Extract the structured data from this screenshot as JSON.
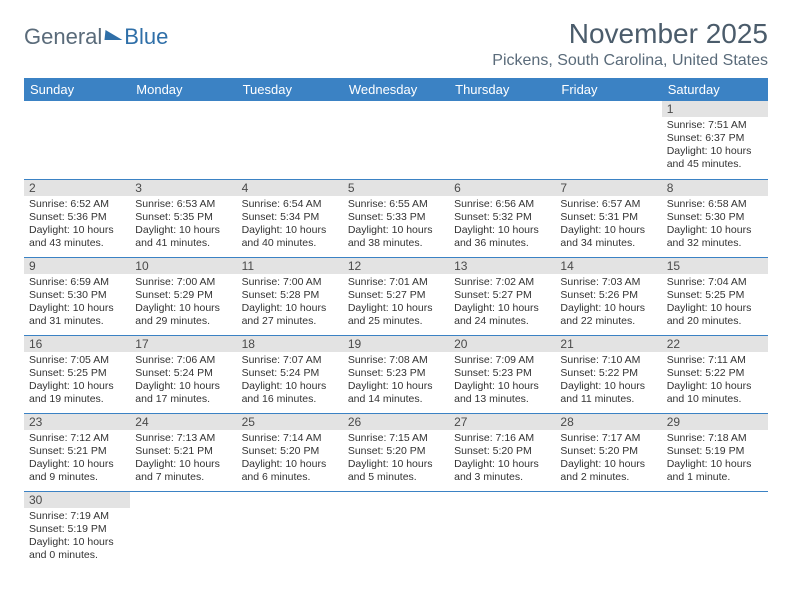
{
  "brand": {
    "part1": "General",
    "part2": "Blue"
  },
  "title": "November 2025",
  "location": "Pickens, South Carolina, United States",
  "colors": {
    "header_bg": "#3b82c4",
    "header_text": "#ffffff",
    "daynum_bg": "#e3e3e3",
    "rule": "#3b82c4",
    "title_text": "#4b5c6b",
    "subtitle_text": "#5a6b7a"
  },
  "weekdays": [
    "Sunday",
    "Monday",
    "Tuesday",
    "Wednesday",
    "Thursday",
    "Friday",
    "Saturday"
  ],
  "weeks": [
    [
      null,
      null,
      null,
      null,
      null,
      null,
      {
        "n": "1",
        "sr": "Sunrise: 7:51 AM",
        "ss": "Sunset: 6:37 PM",
        "dl": "Daylight: 10 hours and 45 minutes."
      }
    ],
    [
      {
        "n": "2",
        "sr": "Sunrise: 6:52 AM",
        "ss": "Sunset: 5:36 PM",
        "dl": "Daylight: 10 hours and 43 minutes."
      },
      {
        "n": "3",
        "sr": "Sunrise: 6:53 AM",
        "ss": "Sunset: 5:35 PM",
        "dl": "Daylight: 10 hours and 41 minutes."
      },
      {
        "n": "4",
        "sr": "Sunrise: 6:54 AM",
        "ss": "Sunset: 5:34 PM",
        "dl": "Daylight: 10 hours and 40 minutes."
      },
      {
        "n": "5",
        "sr": "Sunrise: 6:55 AM",
        "ss": "Sunset: 5:33 PM",
        "dl": "Daylight: 10 hours and 38 minutes."
      },
      {
        "n": "6",
        "sr": "Sunrise: 6:56 AM",
        "ss": "Sunset: 5:32 PM",
        "dl": "Daylight: 10 hours and 36 minutes."
      },
      {
        "n": "7",
        "sr": "Sunrise: 6:57 AM",
        "ss": "Sunset: 5:31 PM",
        "dl": "Daylight: 10 hours and 34 minutes."
      },
      {
        "n": "8",
        "sr": "Sunrise: 6:58 AM",
        "ss": "Sunset: 5:30 PM",
        "dl": "Daylight: 10 hours and 32 minutes."
      }
    ],
    [
      {
        "n": "9",
        "sr": "Sunrise: 6:59 AM",
        "ss": "Sunset: 5:30 PM",
        "dl": "Daylight: 10 hours and 31 minutes."
      },
      {
        "n": "10",
        "sr": "Sunrise: 7:00 AM",
        "ss": "Sunset: 5:29 PM",
        "dl": "Daylight: 10 hours and 29 minutes."
      },
      {
        "n": "11",
        "sr": "Sunrise: 7:00 AM",
        "ss": "Sunset: 5:28 PM",
        "dl": "Daylight: 10 hours and 27 minutes."
      },
      {
        "n": "12",
        "sr": "Sunrise: 7:01 AM",
        "ss": "Sunset: 5:27 PM",
        "dl": "Daylight: 10 hours and 25 minutes."
      },
      {
        "n": "13",
        "sr": "Sunrise: 7:02 AM",
        "ss": "Sunset: 5:27 PM",
        "dl": "Daylight: 10 hours and 24 minutes."
      },
      {
        "n": "14",
        "sr": "Sunrise: 7:03 AM",
        "ss": "Sunset: 5:26 PM",
        "dl": "Daylight: 10 hours and 22 minutes."
      },
      {
        "n": "15",
        "sr": "Sunrise: 7:04 AM",
        "ss": "Sunset: 5:25 PM",
        "dl": "Daylight: 10 hours and 20 minutes."
      }
    ],
    [
      {
        "n": "16",
        "sr": "Sunrise: 7:05 AM",
        "ss": "Sunset: 5:25 PM",
        "dl": "Daylight: 10 hours and 19 minutes."
      },
      {
        "n": "17",
        "sr": "Sunrise: 7:06 AM",
        "ss": "Sunset: 5:24 PM",
        "dl": "Daylight: 10 hours and 17 minutes."
      },
      {
        "n": "18",
        "sr": "Sunrise: 7:07 AM",
        "ss": "Sunset: 5:24 PM",
        "dl": "Daylight: 10 hours and 16 minutes."
      },
      {
        "n": "19",
        "sr": "Sunrise: 7:08 AM",
        "ss": "Sunset: 5:23 PM",
        "dl": "Daylight: 10 hours and 14 minutes."
      },
      {
        "n": "20",
        "sr": "Sunrise: 7:09 AM",
        "ss": "Sunset: 5:23 PM",
        "dl": "Daylight: 10 hours and 13 minutes."
      },
      {
        "n": "21",
        "sr": "Sunrise: 7:10 AM",
        "ss": "Sunset: 5:22 PM",
        "dl": "Daylight: 10 hours and 11 minutes."
      },
      {
        "n": "22",
        "sr": "Sunrise: 7:11 AM",
        "ss": "Sunset: 5:22 PM",
        "dl": "Daylight: 10 hours and 10 minutes."
      }
    ],
    [
      {
        "n": "23",
        "sr": "Sunrise: 7:12 AM",
        "ss": "Sunset: 5:21 PM",
        "dl": "Daylight: 10 hours and 9 minutes."
      },
      {
        "n": "24",
        "sr": "Sunrise: 7:13 AM",
        "ss": "Sunset: 5:21 PM",
        "dl": "Daylight: 10 hours and 7 minutes."
      },
      {
        "n": "25",
        "sr": "Sunrise: 7:14 AM",
        "ss": "Sunset: 5:20 PM",
        "dl": "Daylight: 10 hours and 6 minutes."
      },
      {
        "n": "26",
        "sr": "Sunrise: 7:15 AM",
        "ss": "Sunset: 5:20 PM",
        "dl": "Daylight: 10 hours and 5 minutes."
      },
      {
        "n": "27",
        "sr": "Sunrise: 7:16 AM",
        "ss": "Sunset: 5:20 PM",
        "dl": "Daylight: 10 hours and 3 minutes."
      },
      {
        "n": "28",
        "sr": "Sunrise: 7:17 AM",
        "ss": "Sunset: 5:20 PM",
        "dl": "Daylight: 10 hours and 2 minutes."
      },
      {
        "n": "29",
        "sr": "Sunrise: 7:18 AM",
        "ss": "Sunset: 5:19 PM",
        "dl": "Daylight: 10 hours and 1 minute."
      }
    ],
    [
      {
        "n": "30",
        "sr": "Sunrise: 7:19 AM",
        "ss": "Sunset: 5:19 PM",
        "dl": "Daylight: 10 hours and 0 minutes."
      },
      null,
      null,
      null,
      null,
      null,
      null
    ]
  ]
}
